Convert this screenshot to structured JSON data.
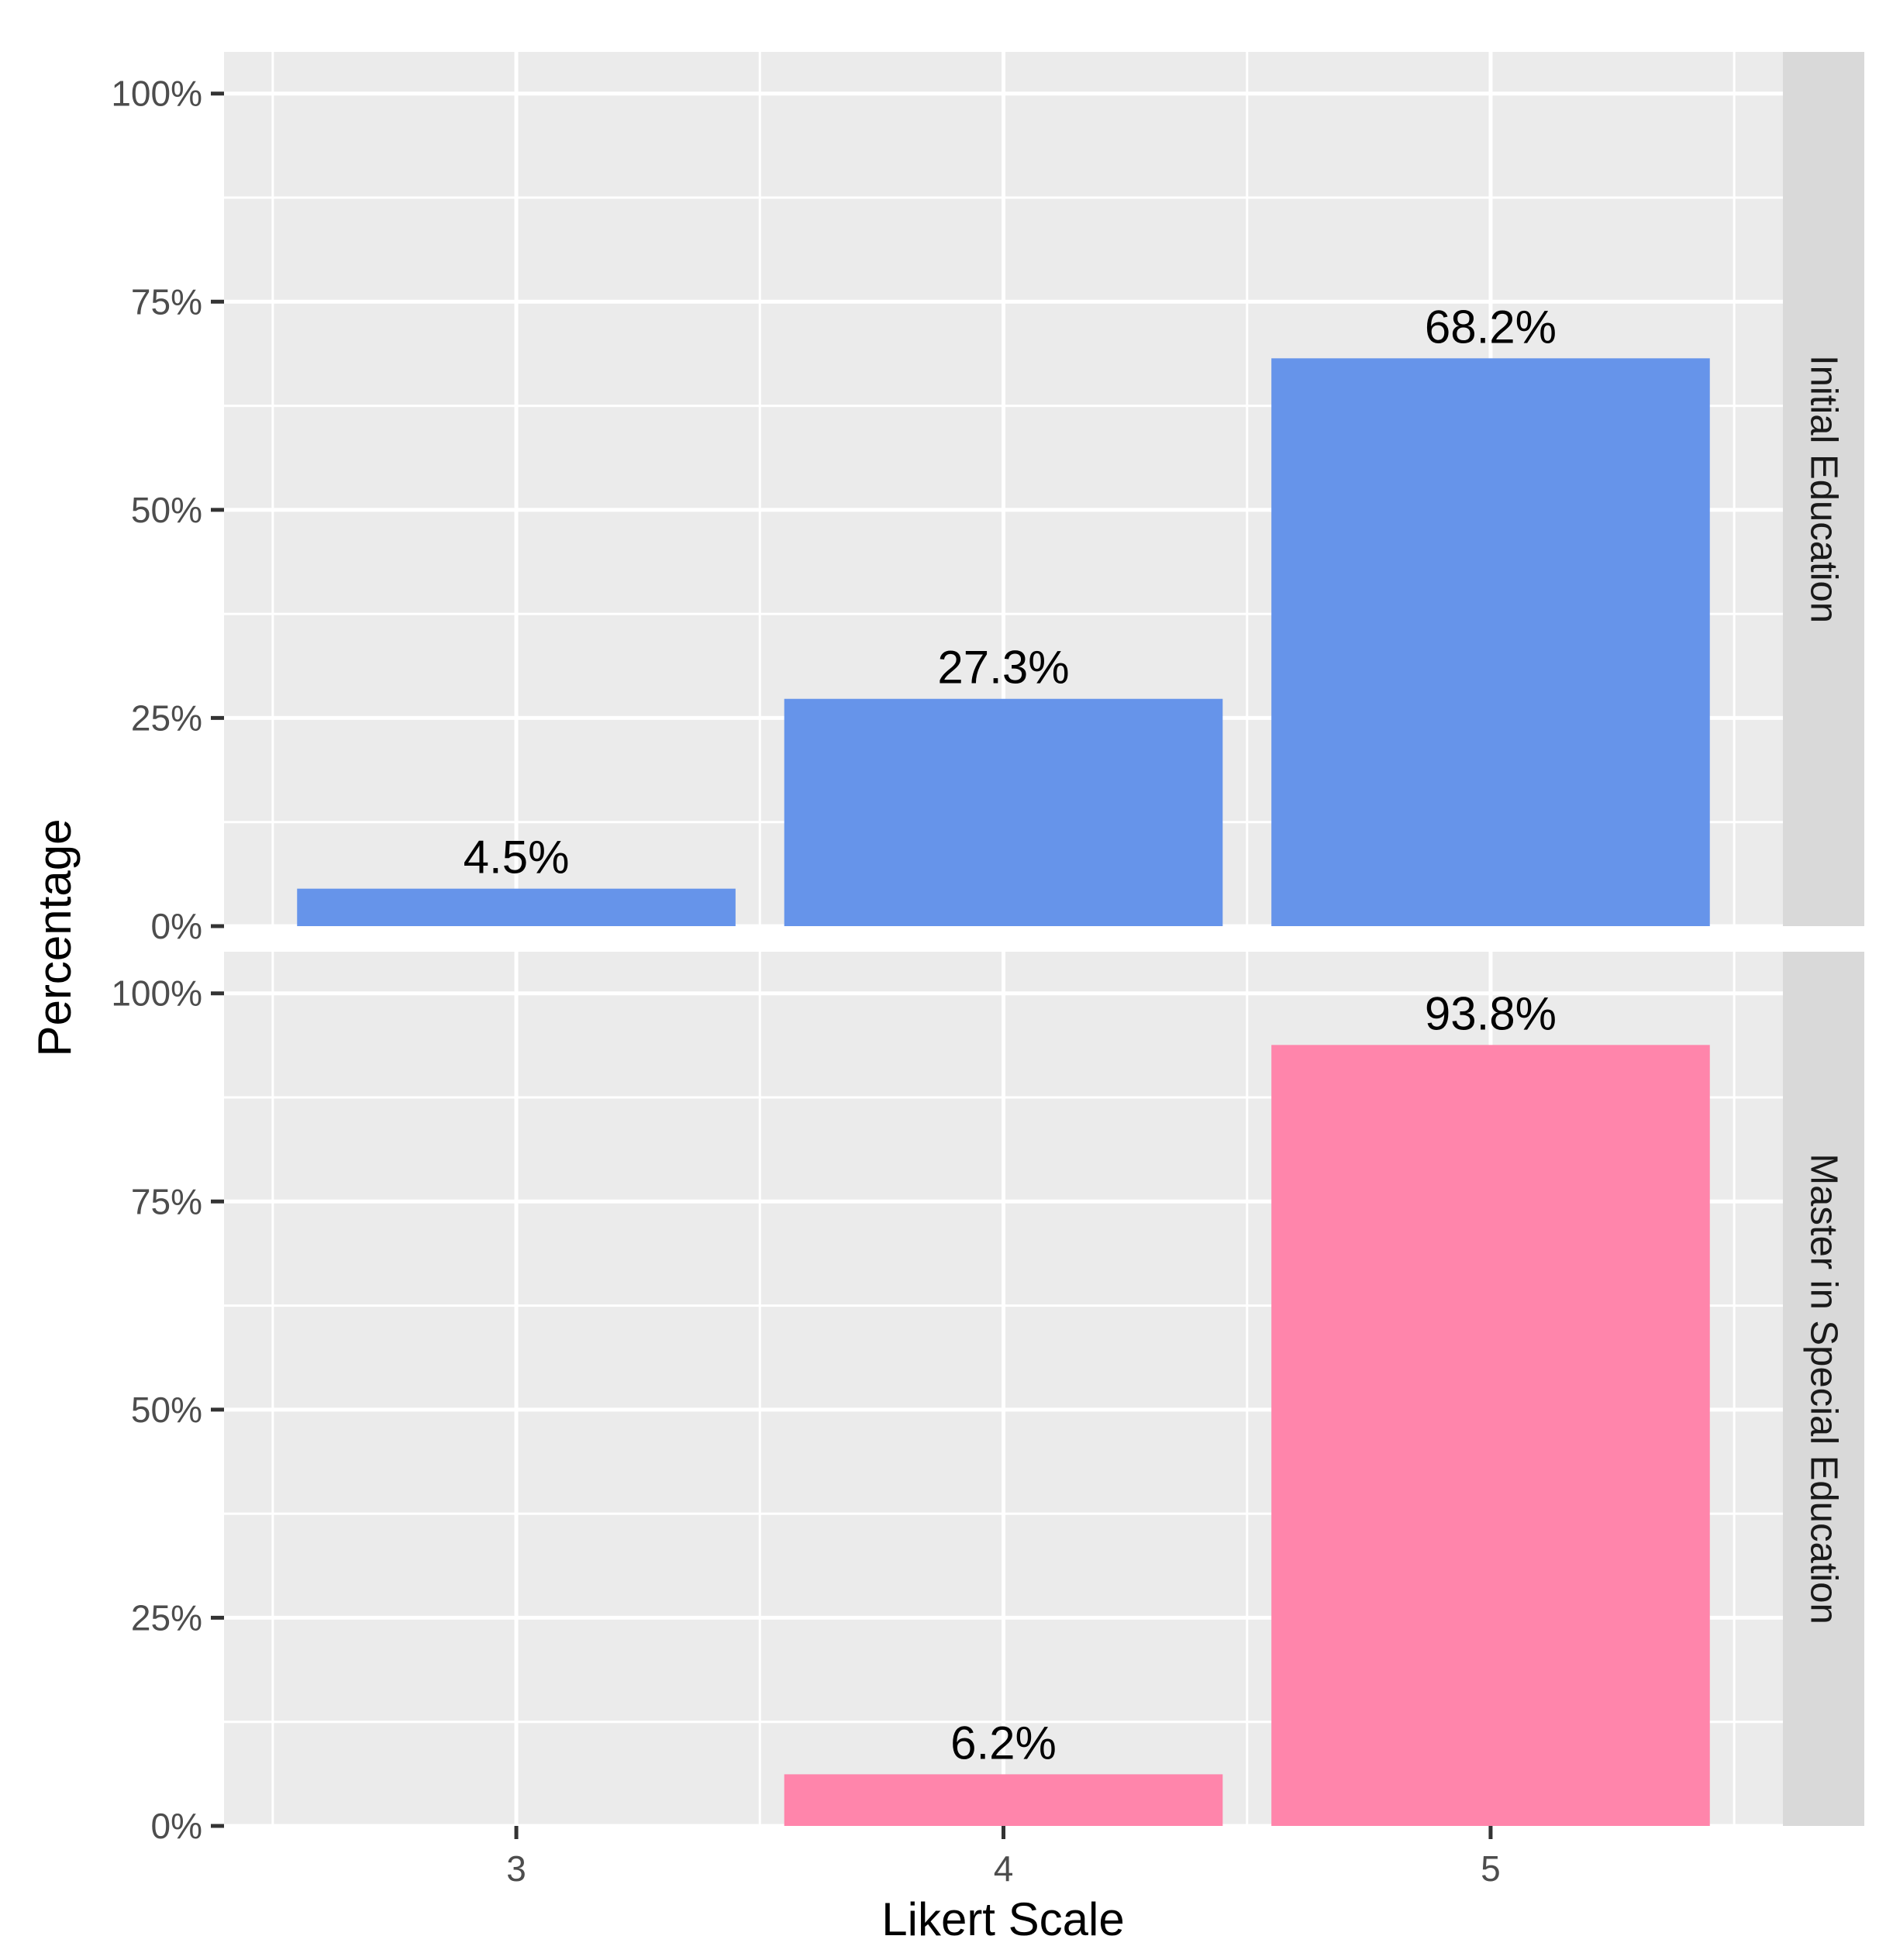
{
  "chart_data": {
    "type": "bar",
    "facet_layout": "rows",
    "xlabel": "Likert Scale",
    "ylabel": "Percentage",
    "categories": [
      "3",
      "4",
      "5"
    ],
    "ylim": [
      0,
      1.05
    ],
    "yticks": [
      0,
      0.25,
      0.5,
      0.75,
      1.0
    ],
    "ytick_labels": [
      "0%",
      "25%",
      "50%",
      "75%",
      "100%"
    ],
    "grid": true,
    "panels": [
      {
        "strip_label": "Initial Education",
        "color": "#6694EA",
        "values": [
          0.045,
          0.273,
          0.682
        ],
        "labels": [
          "4.5%",
          "27.3%",
          "68.2%"
        ]
      },
      {
        "strip_label": "Master in Special Education",
        "color": "#FF85AB",
        "values": [
          0.0,
          0.062,
          0.938
        ],
        "labels": [
          "",
          "6.2%",
          "93.8%"
        ]
      }
    ]
  },
  "colors": {
    "panel_background": "#EBEBEB",
    "strip_background": "#D9D9D9",
    "grid_line": "#FFFFFF",
    "axis_text": "#4D4D4D",
    "tick_mark": "#333333"
  }
}
